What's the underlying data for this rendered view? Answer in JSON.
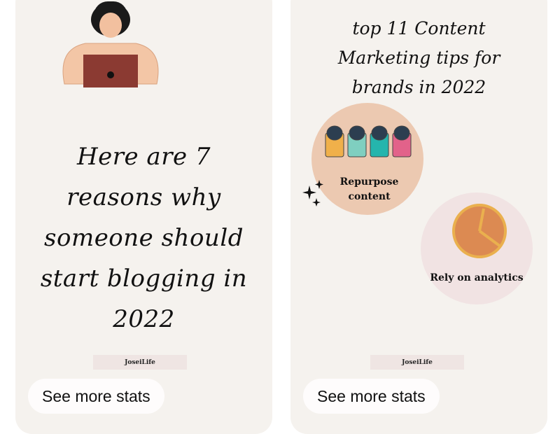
{
  "pins": [
    {
      "title": "Here are 7 reasons why someone should start blogging in 2022",
      "brand": "JoseiLife",
      "button": "See more stats"
    },
    {
      "title": "top 11 Content Marketing tips for brands in 2022",
      "brand": "JoseiLife",
      "button": "See more stats",
      "items": [
        {
          "label": "Repurpose content",
          "icon": "recycle-bins-icon"
        },
        {
          "label": "Rely on analytics",
          "icon": "pie-chart-icon"
        }
      ]
    }
  ],
  "colors": {
    "card": "#f5f2ee",
    "peach": "#ecc9b1",
    "pink": "#f1e3e3",
    "pie": "#dc8a52"
  }
}
